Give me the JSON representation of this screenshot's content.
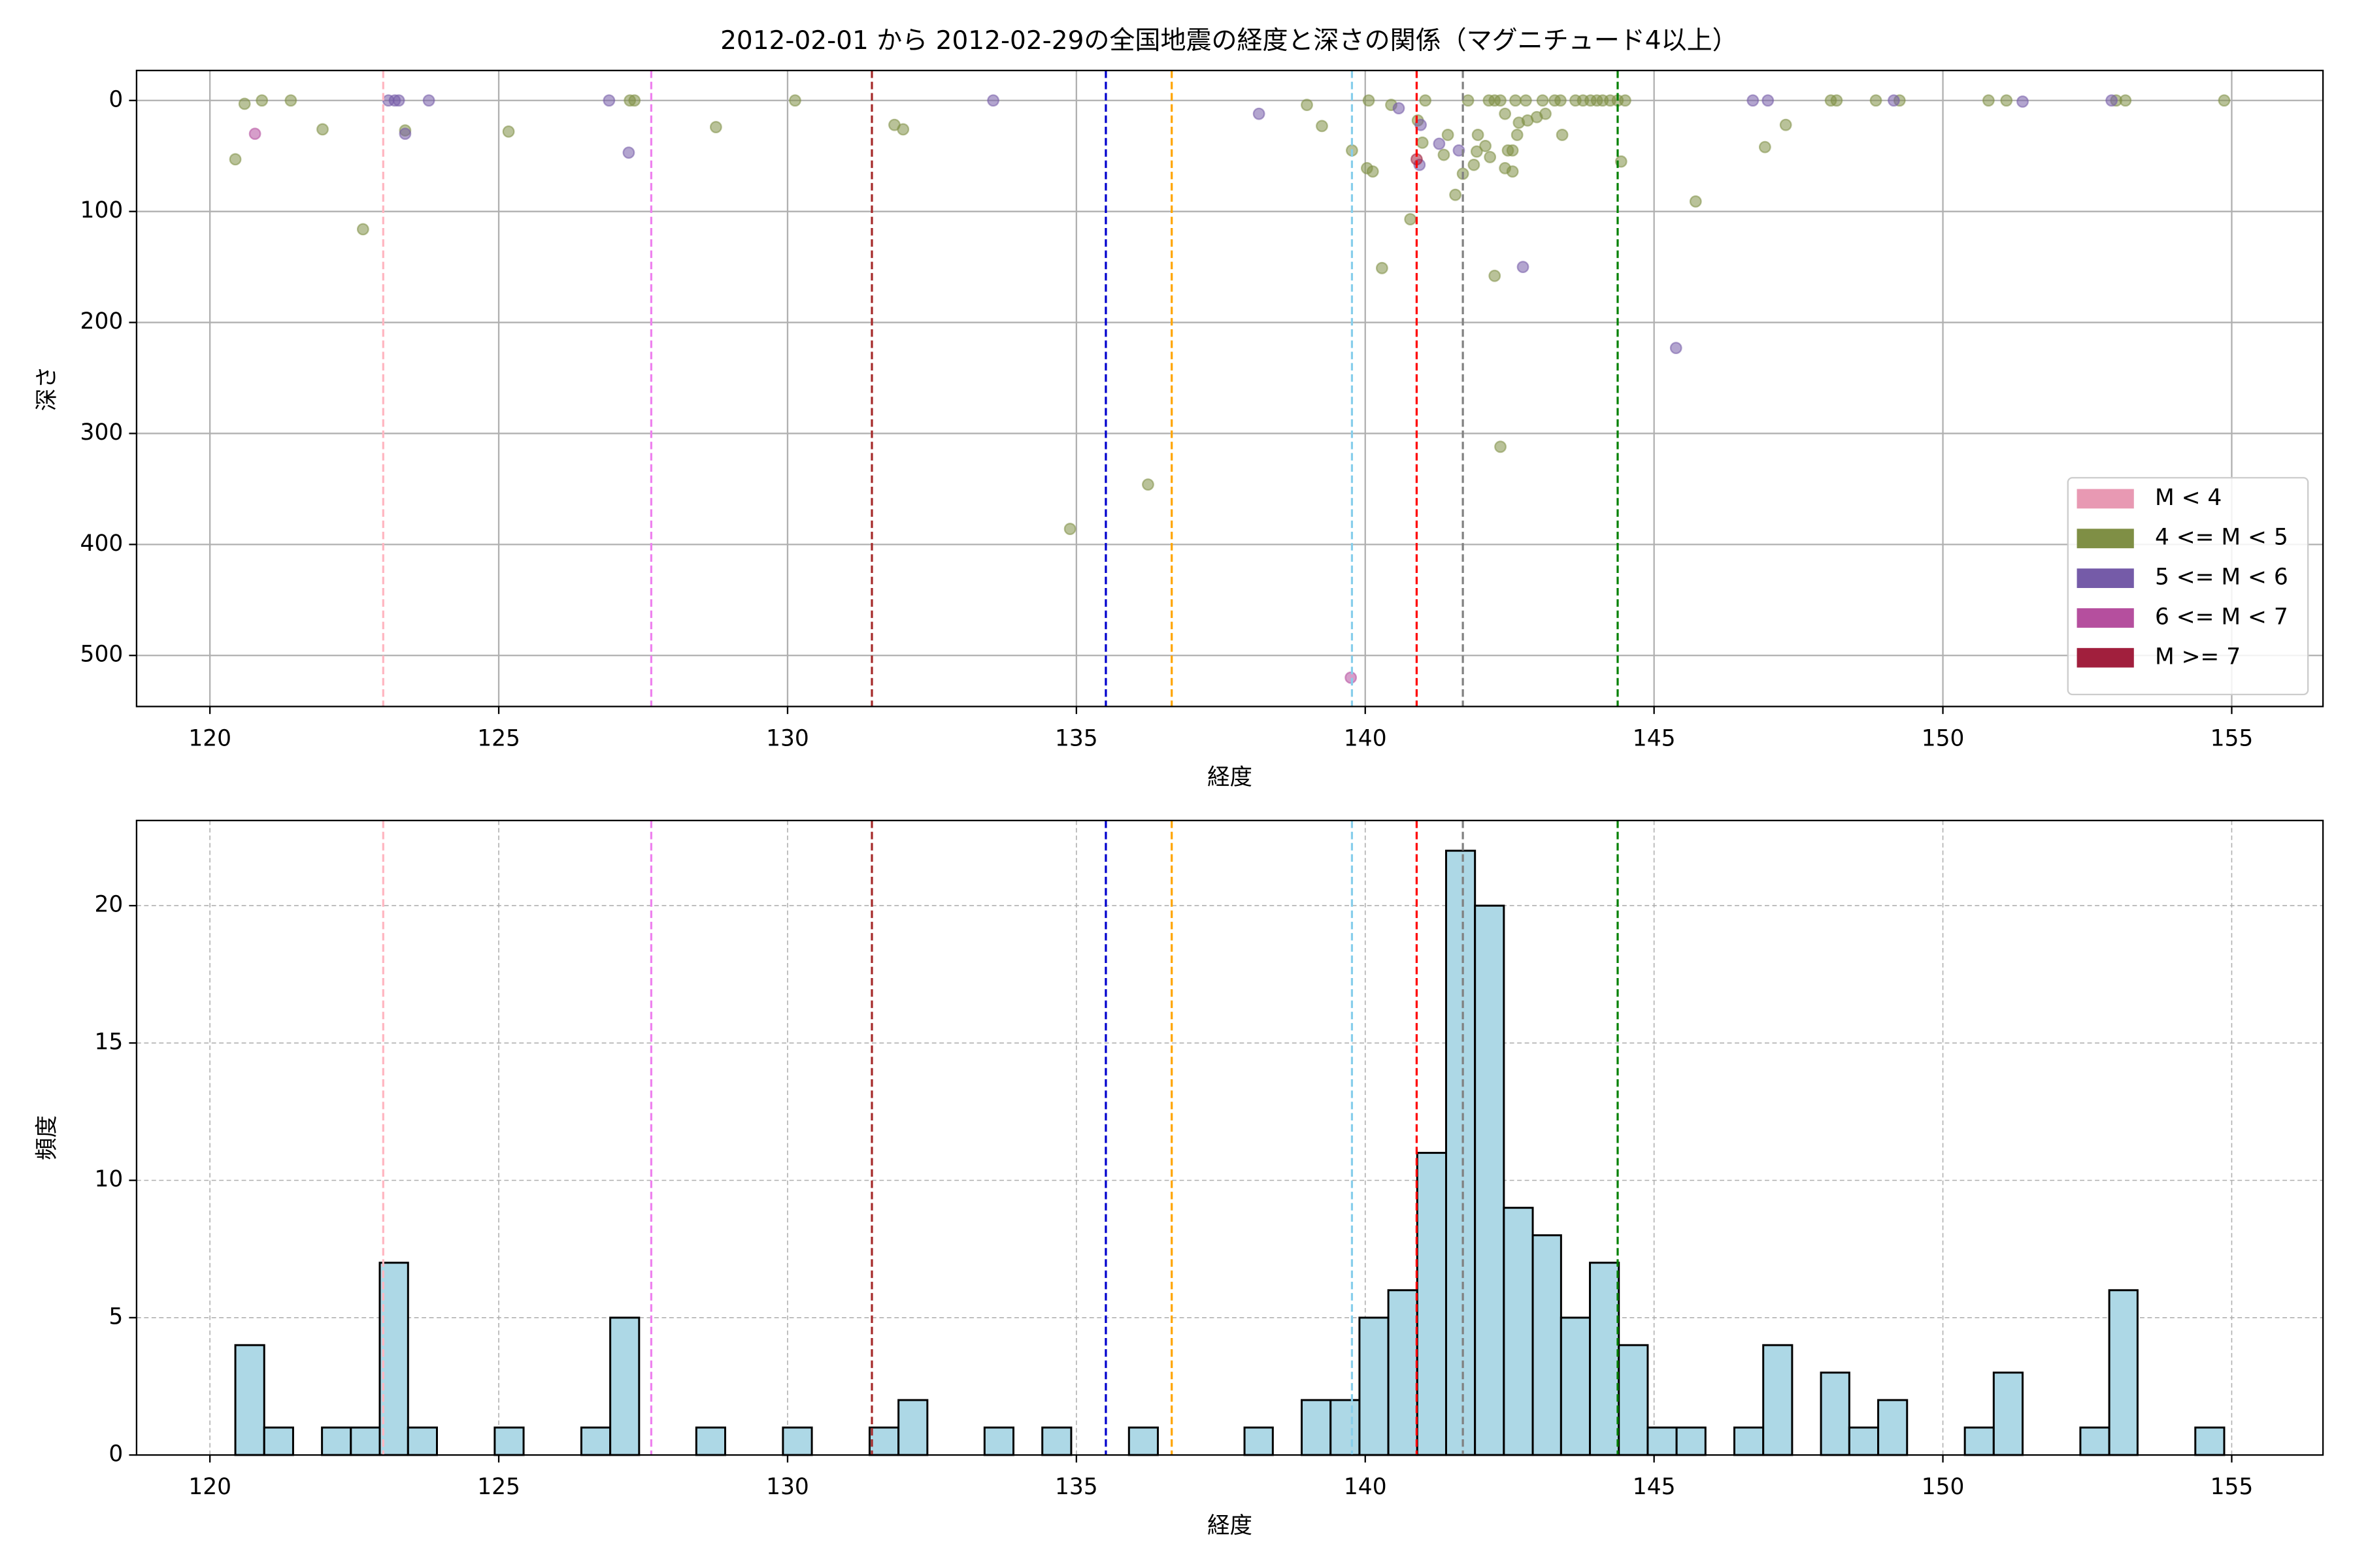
{
  "chart_data": [
    {
      "type": "scatter",
      "title": "2012-02-01 から 2012-02-29の全国地震の経度と深さの関係（マグニチュード4以上）",
      "xlabel": "経度",
      "ylabel": "深さ",
      "xlim": [
        118.73,
        156.58
      ],
      "ylim": [
        546,
        -27
      ],
      "xticks": [
        120,
        125,
        130,
        135,
        140,
        145,
        150,
        155
      ],
      "yticks": [
        0,
        100,
        200,
        300,
        400,
        500
      ],
      "grid": "solid",
      "alpha": 0.55,
      "legend": "lower right",
      "vlines": [
        {
          "x": 123.0,
          "color": "#ffb6c1"
        },
        {
          "x": 127.64,
          "color": "#ee82ee"
        },
        {
          "x": 131.46,
          "color": "#a52a2a"
        },
        {
          "x": 135.51,
          "color": "#0000cd"
        },
        {
          "x": 136.65,
          "color": "#ffa500"
        },
        {
          "x": 139.77,
          "color": "#87ceeb"
        },
        {
          "x": 140.89,
          "color": "#ff0000"
        },
        {
          "x": 141.69,
          "color": "#808080"
        },
        {
          "x": 144.37,
          "color": "#008000"
        }
      ],
      "series": [
        {
          "name": "M < 4",
          "color": "#e899b3",
          "x": [],
          "y": []
        },
        {
          "name": "4 <= M < 5",
          "color": "#7f8f45",
          "x": [
            120.44,
            120.6,
            120.9,
            121.4,
            121.95,
            122.65,
            123.38,
            125.17,
            127.27,
            127.35,
            128.76,
            130.13,
            131.85,
            132.0,
            134.89,
            136.24,
            138.99,
            139.25,
            139.77,
            140.03,
            140.13,
            140.29,
            140.06,
            140.45,
            140.78,
            140.91,
            141.04,
            141.36,
            141.43,
            141.56,
            141.69,
            141.78,
            141.88,
            141.95,
            142.08,
            142.16,
            142.24,
            142.34,
            142.42,
            142.47,
            142.55,
            142.66,
            142.42,
            142.14,
            142.24,
            142.34,
            142.6,
            142.81,
            142.97,
            143.12,
            143.41,
            142.78,
            143.07,
            143.28,
            143.38,
            143.64,
            143.77,
            143.9,
            144.01,
            144.11,
            144.24,
            144.37,
            144.5,
            144.43,
            145.72,
            146.92,
            147.28,
            148.06,
            148.16,
            148.84,
            149.25,
            150.79,
            151.1,
            153.0,
            153.16,
            154.87,
            142.63,
            142.55,
            140.99,
            141.93
          ],
          "y": [
            53,
            3,
            0,
            0,
            26,
            116,
            27,
            28,
            0,
            0,
            24,
            0,
            22,
            26,
            386,
            346,
            4,
            23,
            45,
            61,
            64,
            151,
            0,
            4,
            107,
            18,
            0,
            49,
            31,
            85,
            66,
            0,
            58,
            31,
            41,
            51,
            158,
            312,
            61,
            45,
            64,
            20,
            12,
            0,
            0,
            0,
            0,
            18,
            15,
            12,
            31,
            0,
            0,
            0,
            0,
            0,
            0,
            0,
            0,
            0,
            0,
            0,
            0,
            55,
            91,
            42,
            22,
            0,
            0,
            0,
            0,
            0,
            0,
            0,
            0,
            0,
            31,
            45,
            38,
            46
          ]
        },
        {
          "name": "5 <= M < 6",
          "color": "#755ba8",
          "x": [
            123.09,
            123.2,
            123.27,
            123.38,
            123.79,
            126.91,
            127.25,
            133.56,
            138.16,
            140.58,
            140.96,
            141.28,
            142.73,
            145.38,
            146.71,
            146.97,
            149.15,
            151.38,
            152.92,
            141.62,
            140.94
          ],
          "y": [
            0,
            0,
            0,
            30,
            0,
            0,
            47,
            0,
            12,
            7,
            22,
            39,
            150,
            223,
            0,
            0,
            0,
            1,
            0,
            45,
            58
          ]
        },
        {
          "name": "6 <= M < 7",
          "color": "#b54f9e",
          "x": [
            120.78,
            139.75
          ],
          "y": [
            30,
            520
          ]
        },
        {
          "name": "M >= 7",
          "color": "#a11f3d",
          "x": [
            140.89
          ],
          "y": [
            53
          ]
        }
      ]
    },
    {
      "type": "histogram",
      "xlabel": "経度",
      "ylabel": "頻度",
      "xlim": [
        118.73,
        156.58
      ],
      "ylim": [
        0,
        23.1
      ],
      "xticks": [
        120,
        125,
        130,
        135,
        140,
        145,
        150,
        155
      ],
      "yticks": [
        0,
        5,
        10,
        15,
        20
      ],
      "grid": "dashed",
      "color": "#add8e6",
      "edgecolor": "#000000",
      "vlines": [
        {
          "x": 123.0,
          "color": "#ffb6c1"
        },
        {
          "x": 127.64,
          "color": "#ee82ee"
        },
        {
          "x": 131.46,
          "color": "#a52a2a"
        },
        {
          "x": 135.51,
          "color": "#0000cd"
        },
        {
          "x": 136.65,
          "color": "#ffa500"
        },
        {
          "x": 139.77,
          "color": "#87ceeb"
        },
        {
          "x": 140.89,
          "color": "#ff0000"
        },
        {
          "x": 141.69,
          "color": "#808080"
        },
        {
          "x": 144.37,
          "color": "#008000"
        }
      ],
      "bins": [
        120.44,
        120.94,
        121.44,
        121.94,
        122.44,
        122.94,
        123.43,
        123.93,
        124.43,
        124.93,
        125.43,
        125.93,
        126.43,
        126.93,
        127.43,
        127.93,
        128.42,
        128.92,
        129.42,
        129.92,
        130.42,
        130.92,
        131.42,
        131.92,
        132.42,
        132.92,
        133.41,
        133.91,
        134.41,
        134.91,
        135.41,
        135.91,
        136.41,
        136.91,
        137.41,
        137.91,
        138.4,
        138.9,
        139.4,
        139.9,
        140.4,
        140.9,
        141.4,
        141.9,
        142.4,
        142.9,
        143.39,
        143.89,
        144.39,
        144.89,
        145.39,
        145.89,
        146.39,
        146.89,
        147.39,
        147.89,
        148.38,
        148.88,
        149.38,
        149.88,
        150.38,
        150.88,
        151.38,
        151.88,
        152.38,
        152.88,
        153.37,
        153.87,
        154.37,
        154.87
      ],
      "values": [
        4,
        1,
        0,
        1,
        1,
        7,
        1,
        0,
        0,
        1,
        0,
        0,
        1,
        5,
        0,
        0,
        1,
        0,
        0,
        1,
        0,
        0,
        1,
        2,
        0,
        0,
        1,
        0,
        1,
        0,
        0,
        1,
        0,
        0,
        0,
        1,
        0,
        2,
        2,
        5,
        6,
        11,
        22,
        20,
        9,
        8,
        5,
        7,
        4,
        1,
        1,
        0,
        1,
        4,
        0,
        3,
        1,
        2,
        0,
        0,
        1,
        3,
        0,
        0,
        1,
        6,
        0,
        0,
        1
      ]
    }
  ]
}
